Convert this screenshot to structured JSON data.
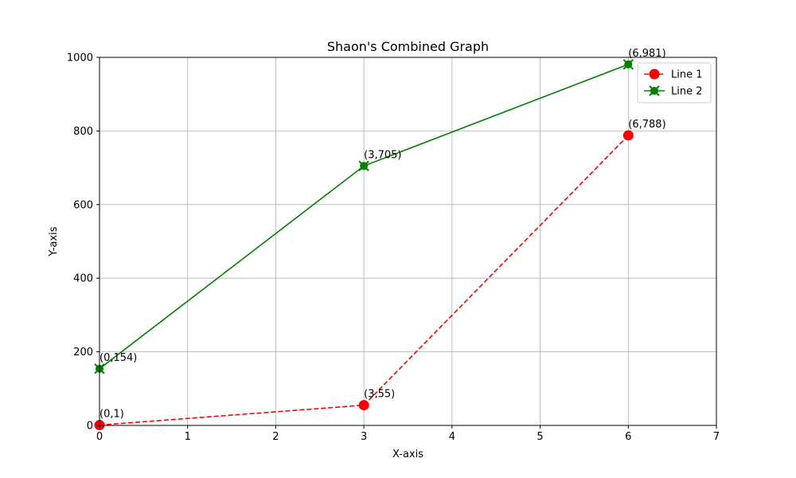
{
  "chart_data": {
    "type": "line",
    "title": "Shaon's Combined Graph",
    "xlabel": "X-axis",
    "ylabel": "Y-axis",
    "xlim": [
      0,
      7
    ],
    "ylim": [
      0,
      1000
    ],
    "xticks": [
      "0",
      "1",
      "2",
      "3",
      "4",
      "5",
      "6",
      "7"
    ],
    "yticks": [
      "0",
      "200",
      "400",
      "600",
      "800",
      "1000"
    ],
    "grid": true,
    "legend_position": "top-right",
    "series": [
      {
        "name": "Line 1",
        "color": "#ff0000",
        "linestyle": "dashed",
        "marker": "circle",
        "x": [
          0,
          3,
          6
        ],
        "y": [
          1,
          55,
          788
        ],
        "labels": [
          "(0,1)",
          "(3,55)",
          "(6,788)"
        ]
      },
      {
        "name": "Line 2",
        "color": "#008000",
        "linestyle": "solid",
        "marker": "x",
        "x": [
          0,
          3,
          6
        ],
        "y": [
          154,
          705,
          981
        ],
        "labels": [
          "(0,154)",
          "(3,705)",
          "(6,981)"
        ]
      }
    ]
  }
}
